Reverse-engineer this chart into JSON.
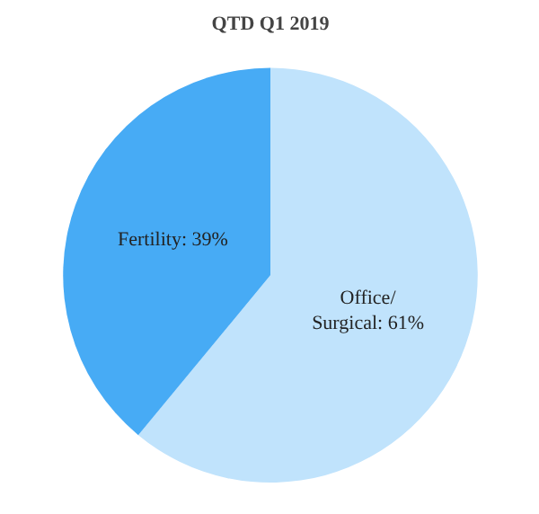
{
  "chart_data": {
    "type": "pie",
    "title": "QTD Q1 2019",
    "categories": [
      "Office/\nSurgical",
      "Fertility"
    ],
    "values": [
      61,
      39
    ],
    "colors": [
      "#c0e3fc",
      "#47abf5"
    ],
    "value_labels": [
      "61%",
      "39%"
    ]
  }
}
